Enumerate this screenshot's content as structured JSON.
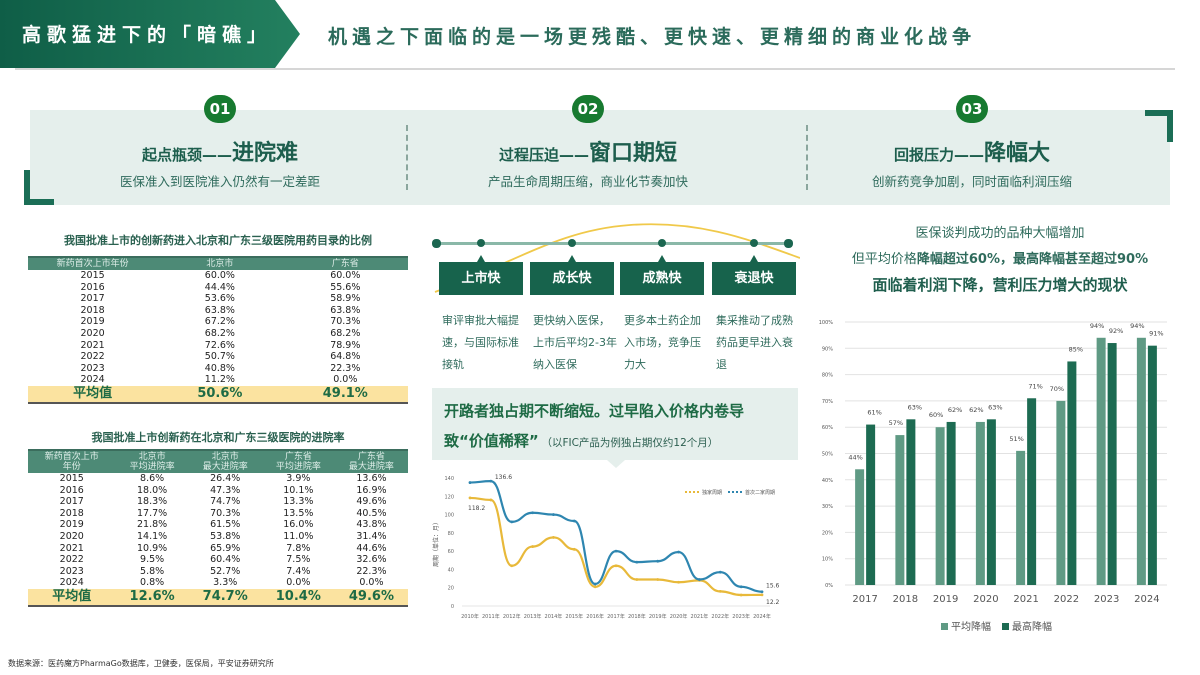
{
  "header": {
    "tag": "高歌猛进下的「暗礁」",
    "subtitle": "机遇之下面临的是一场更残酷、更快速、更精细的商业化战争"
  },
  "sections": [
    {
      "num": "01",
      "prefix": "起点瓶颈——",
      "highlight": "进院难",
      "desc": "医保准入到医院准入仍然有一定差距"
    },
    {
      "num": "02",
      "prefix": "过程压迫——",
      "highlight": "窗口期短",
      "desc": "产品生命周期压缩，商业化节奏加快"
    },
    {
      "num": "03",
      "prefix": "回报压力——",
      "highlight": "降幅大",
      "desc": "创新药竞争加剧，同时面临利润压缩"
    }
  ],
  "table1": {
    "title": "我国批准上市的创新药进入北京和广东三级医院用药目录的比例",
    "headers": [
      "新药首次上市年份",
      "北京市",
      "广东省"
    ],
    "rows": [
      [
        "2015",
        "60.0%",
        "60.0%"
      ],
      [
        "2016",
        "44.4%",
        "55.6%"
      ],
      [
        "2017",
        "53.6%",
        "58.9%"
      ],
      [
        "2018",
        "63.8%",
        "63.8%"
      ],
      [
        "2019",
        "67.2%",
        "70.3%"
      ],
      [
        "2020",
        "68.2%",
        "68.2%"
      ],
      [
        "2021",
        "72.6%",
        "78.9%"
      ],
      [
        "2022",
        "50.7%",
        "64.8%"
      ],
      [
        "2023",
        "40.8%",
        "22.3%"
      ],
      [
        "2024",
        "11.2%",
        "0.0%"
      ]
    ],
    "avg": [
      "平均值",
      "50.6%",
      "49.1%"
    ]
  },
  "table2": {
    "title": "我国批准上市创新药在北京和广东三级医院的进院率",
    "headers": [
      [
        "新药首次上市",
        "年份"
      ],
      [
        "北京市",
        "平均进院率"
      ],
      [
        "北京市",
        "最大进院率"
      ],
      [
        "广东省",
        "平均进院率"
      ],
      [
        "广东省",
        "最大进院率"
      ]
    ],
    "rows": [
      [
        "2015",
        "8.6%",
        "26.4%",
        "3.9%",
        "13.6%"
      ],
      [
        "2016",
        "18.0%",
        "47.3%",
        "10.1%",
        "16.9%"
      ],
      [
        "2017",
        "18.3%",
        "74.7%",
        "13.3%",
        "49.6%"
      ],
      [
        "2018",
        "17.7%",
        "70.3%",
        "13.5%",
        "40.5%"
      ],
      [
        "2019",
        "21.8%",
        "61.5%",
        "16.0%",
        "43.8%"
      ],
      [
        "2020",
        "14.1%",
        "53.8%",
        "11.0%",
        "31.4%"
      ],
      [
        "2021",
        "10.9%",
        "65.9%",
        "7.8%",
        "44.6%"
      ],
      [
        "2022",
        "9.5%",
        "60.4%",
        "7.5%",
        "32.6%"
      ],
      [
        "2023",
        "5.8%",
        "52.7%",
        "7.4%",
        "22.3%"
      ],
      [
        "2024",
        "0.8%",
        "3.3%",
        "0.0%",
        "0.0%"
      ]
    ],
    "avg": [
      "平均值",
      "12.6%",
      "74.7%",
      "10.4%",
      "49.6%"
    ]
  },
  "lifecycle": {
    "stages": [
      {
        "label": "上市快",
        "desc": "审评审批大幅提速，与国际标准接轨"
      },
      {
        "label": "成长快",
        "desc": "更快纳入医保，上市后平均2-3年纳入医保"
      },
      {
        "label": "成熟快",
        "desc": "更多本土药企加入市场，竞争压力大"
      },
      {
        "label": "衰退快",
        "desc": "集采推动了成熟药品更早进入衰退"
      }
    ]
  },
  "callout": {
    "line1": "开路者独占期不断缩短。过早陷入价格内卷导",
    "line2": "致“价值稀释”",
    "note": "（以FIC产品为例独占期仅约12个月）"
  },
  "right_text": {
    "line1": "医保谈判成功的品种大幅增加",
    "line2_a": "但平均价格",
    "line2_b": "降幅超过60%，最高降幅甚至超过90%",
    "line3": "面临着利润下降，营利压力增大的现状"
  },
  "source": "数据来源：医药魔方PharmaGo数据库，卫健委，医保局，平安证券研究所",
  "chart_data": [
    {
      "type": "line",
      "title": "",
      "xlabel": "",
      "ylabel": "周期（单位：月）",
      "ylim": [
        0,
        140
      ],
      "yticks": [
        0,
        20,
        40,
        60,
        80,
        100,
        120,
        140
      ],
      "x": [
        "2010年",
        "2011年",
        "2012年",
        "2013年",
        "2014年",
        "2015年",
        "2016年",
        "2017年",
        "2018年",
        "2019年",
        "2020年",
        "2021年",
        "2022年",
        "2023年",
        "2024年"
      ],
      "series": [
        {
          "name": "独家周期",
          "color": "#e8b93a",
          "values": [
            118.2,
            116,
            44,
            65,
            75,
            62,
            21,
            44,
            29,
            29,
            26,
            28,
            16,
            12,
            12.2
          ]
        },
        {
          "name": "首次二家周期",
          "color": "#2e86b0",
          "values": [
            135,
            136.6,
            92,
            102,
            100,
            93,
            24,
            60,
            48,
            49,
            59,
            29,
            37,
            21,
            15.6
          ]
        }
      ],
      "annotations": [
        "136.6",
        "118.2",
        "15.6",
        "12.2"
      ],
      "legend_position": "top-right",
      "grid": false
    },
    {
      "type": "bar",
      "title": "",
      "xlabel": "",
      "ylabel": "",
      "ylim": [
        0,
        100
      ],
      "yticks": [
        "0%",
        "10%",
        "20%",
        "30%",
        "40%",
        "50%",
        "60%",
        "70%",
        "80%",
        "90%",
        "100%"
      ],
      "categories": [
        "2017",
        "2018",
        "2019",
        "2020",
        "2021",
        "2022",
        "2023",
        "2024"
      ],
      "series": [
        {
          "name": "平均降幅",
          "color": "#5f9a84",
          "values": [
            44,
            57,
            60,
            62,
            51,
            70,
            94,
            94
          ]
        },
        {
          "name": "最高降幅",
          "color": "#1d6b52",
          "values": [
            61,
            63,
            62,
            63,
            71,
            85,
            92,
            91
          ]
        }
      ],
      "legend_position": "bottom",
      "grid": true
    }
  ]
}
